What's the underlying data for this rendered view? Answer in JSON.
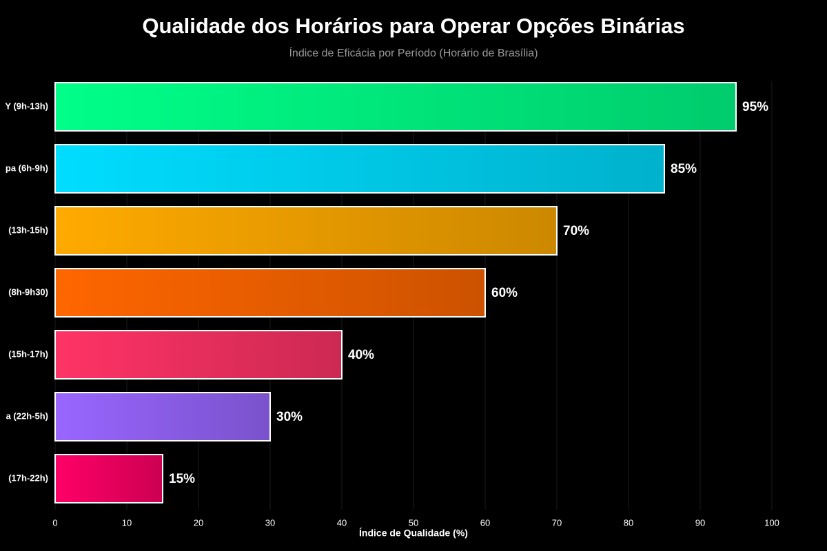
{
  "chart_data": {
    "type": "hbar",
    "title": "Qualidade dos Horários para Operar Opções Binárias",
    "subtitle": "Índice de Eficácia por Período (Horário de Brasília)",
    "x_label": "Índice de Qualidade (%)",
    "categories": [
      "Y (9h-13h)",
      "pa (6h-9h)",
      "(13h-15h)",
      "(8h-9h30)",
      "(15h-17h)",
      "a (22h-5h)",
      "(17h-22h)"
    ],
    "values": [
      95,
      85,
      70,
      60,
      40,
      30,
      15
    ],
    "value_labels": [
      "95%",
      "85%",
      "70%",
      "60%",
      "40%",
      "30%",
      "15%"
    ],
    "colors": [
      "#00ff88",
      "#00ddff",
      "#ffaa00",
      "#ff6600",
      "#ff3366",
      "#9966ff",
      "#ff0066"
    ],
    "xlim": [
      0,
      100
    ],
    "xticks": [
      0,
      10,
      20,
      30,
      40,
      50,
      60,
      70,
      80,
      90,
      100
    ],
    "grid": true
  }
}
